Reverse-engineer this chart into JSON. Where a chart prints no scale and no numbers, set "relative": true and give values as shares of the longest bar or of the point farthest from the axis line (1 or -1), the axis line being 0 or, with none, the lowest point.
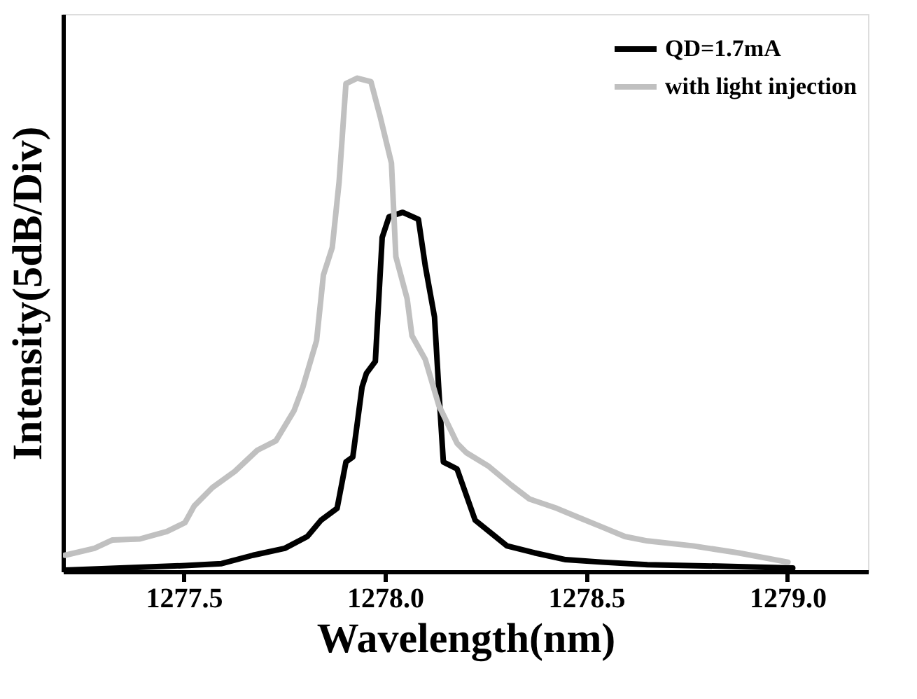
{
  "chart_data": {
    "type": "line",
    "relative": true,
    "xlabel": "Wavelength(nm)",
    "ylabel": "Intensity(5dB/Div)",
    "xlim": [
      1277.2,
      1279.2
    ],
    "xticks": [
      {
        "value": 1277.5,
        "label": "1277.5"
      },
      {
        "value": 1278.0,
        "label": "1278.0"
      },
      {
        "value": 1278.5,
        "label": "1278.5"
      },
      {
        "value": 1279.0,
        "label": "1279.0"
      }
    ],
    "grid": false,
    "legend": "top right",
    "marker": "none",
    "line_style": "solid",
    "series": [
      {
        "name": "QD=1.7mA",
        "color": "#000000",
        "x": [
          1277.205,
          1277.503,
          1277.594,
          1277.672,
          1277.751,
          1277.807,
          1277.841,
          1277.881,
          1277.903,
          1277.92,
          1277.943,
          1277.954,
          1277.976,
          1277.993,
          1278.01,
          1278.044,
          1278.083,
          1278.1,
          1278.123,
          1278.134,
          1278.145,
          1278.179,
          1278.224,
          1278.303,
          1278.371,
          1278.449,
          1278.54,
          1278.652,
          1278.877,
          1279.013
        ],
        "values": [
          0.003,
          0.012,
          0.016,
          0.033,
          0.047,
          0.071,
          0.104,
          0.128,
          0.222,
          0.232,
          0.374,
          0.402,
          0.426,
          0.677,
          0.719,
          0.728,
          0.714,
          0.62,
          0.516,
          0.364,
          0.222,
          0.208,
          0.104,
          0.052,
          0.038,
          0.024,
          0.019,
          0.014,
          0.01,
          0.007
        ]
      },
      {
        "name": "with light injection",
        "color": "#c0c0c0",
        "x": [
          1277.205,
          1277.278,
          1277.323,
          1277.391,
          1277.458,
          1277.503,
          1277.526,
          1277.571,
          1277.627,
          1277.683,
          1277.729,
          1277.774,
          1277.796,
          1277.83,
          1277.847,
          1277.869,
          1277.886,
          1277.903,
          1277.931,
          1277.965,
          1277.988,
          1278.016,
          1278.027,
          1278.055,
          1278.067,
          1278.1,
          1278.134,
          1278.179,
          1278.202,
          1278.258,
          1278.314,
          1278.359,
          1278.427,
          1278.483,
          1278.54,
          1278.596,
          1278.652,
          1278.765,
          1278.877,
          1279.001
        ],
        "values": [
          0.033,
          0.047,
          0.064,
          0.066,
          0.081,
          0.099,
          0.133,
          0.17,
          0.203,
          0.246,
          0.265,
          0.326,
          0.374,
          0.468,
          0.601,
          0.657,
          0.79,
          0.989,
          1.0,
          0.993,
          0.922,
          0.828,
          0.638,
          0.553,
          0.478,
          0.43,
          0.336,
          0.26,
          0.241,
          0.213,
          0.175,
          0.147,
          0.128,
          0.109,
          0.09,
          0.071,
          0.062,
          0.052,
          0.038,
          0.019
        ]
      }
    ]
  }
}
